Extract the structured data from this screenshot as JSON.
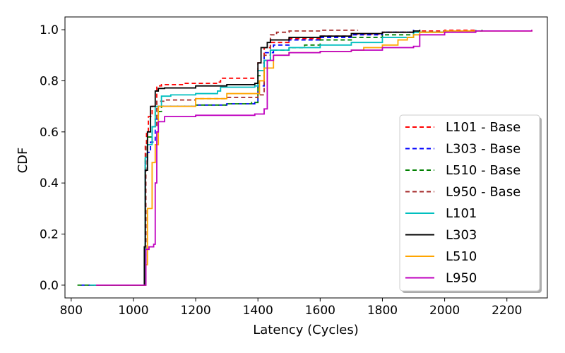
{
  "chart_data": {
    "type": "line",
    "title": "",
    "xlabel": "Latency (Cycles)",
    "ylabel": "CDF",
    "xlim": [
      780,
      2330
    ],
    "ylim": [
      -0.05,
      1.05
    ],
    "xticks": [
      800,
      1000,
      1200,
      1400,
      1600,
      1800,
      2000,
      2200
    ],
    "yticks": [
      0.0,
      0.2,
      0.4,
      0.6,
      0.8,
      1.0
    ],
    "xtick_labels": [
      "800",
      "1000",
      "1200",
      "1400",
      "1600",
      "1800",
      "2000",
      "2200"
    ],
    "ytick_labels": [
      "0.0",
      "0.2",
      "0.4",
      "0.6",
      "0.8",
      "1.0"
    ],
    "grid": false,
    "legend_position": "lower-right",
    "series": [
      {
        "name": "L101 - Base",
        "color": "#ff0000",
        "style": "dashed",
        "x": [
          860,
          1035,
          1038,
          1042,
          1048,
          1060,
          1075,
          1090,
          1160,
          1270,
          1280,
          1390,
          1400,
          1420,
          1440,
          1500,
          1600,
          1700,
          1800,
          1900,
          2000,
          2100
        ],
        "y": [
          0.0,
          0.0,
          0.55,
          0.6,
          0.66,
          0.7,
          0.78,
          0.785,
          0.79,
          0.795,
          0.81,
          0.81,
          0.87,
          0.93,
          0.95,
          0.965,
          0.975,
          0.983,
          0.99,
          0.995,
          0.998,
          1.0
        ]
      },
      {
        "name": "L303 - Base",
        "color": "#0000ff",
        "style": "dashed",
        "x": [
          830,
          1035,
          1038,
          1045,
          1055,
          1070,
          1080,
          1100,
          1200,
          1300,
          1390,
          1400,
          1420,
          1450,
          1500,
          1600,
          1700,
          1800,
          1900
        ],
        "y": [
          0.0,
          0.0,
          0.48,
          0.52,
          0.56,
          0.65,
          0.7,
          0.7,
          0.705,
          0.71,
          0.715,
          0.78,
          0.91,
          0.94,
          0.96,
          0.97,
          0.98,
          0.99,
          1.0
        ]
      },
      {
        "name": "L510 - Base",
        "color": "#008000",
        "style": "dashed",
        "x": [
          820,
          1035,
          1038,
          1045,
          1060,
          1070,
          1090,
          1200,
          1300,
          1380,
          1400,
          1420,
          1440,
          1500,
          1550,
          1600,
          1700,
          1800,
          1900,
          2000,
          2120
        ],
        "y": [
          0.0,
          0.0,
          0.5,
          0.58,
          0.62,
          0.68,
          0.7,
          0.705,
          0.71,
          0.715,
          0.82,
          0.88,
          0.92,
          0.93,
          0.94,
          0.96,
          0.97,
          0.98,
          0.99,
          0.995,
          1.0
        ]
      },
      {
        "name": "L950 - Base",
        "color": "#a52a2a",
        "style": "dashed",
        "x": [
          860,
          1035,
          1040,
          1060,
          1075,
          1100,
          1200,
          1300,
          1400,
          1420,
          1440,
          1460,
          1500,
          1600,
          1720
        ],
        "y": [
          0.0,
          0.0,
          0.55,
          0.62,
          0.72,
          0.725,
          0.73,
          0.735,
          0.745,
          0.9,
          0.98,
          0.99,
          0.995,
          0.998,
          1.0
        ]
      },
      {
        "name": "L101",
        "color": "#00bfbf",
        "style": "solid",
        "x": [
          860,
          1035,
          1038,
          1045,
          1060,
          1070,
          1090,
          1120,
          1200,
          1270,
          1280,
          1390,
          1400,
          1420,
          1440,
          1500,
          1600,
          1700,
          1800,
          1900,
          2000,
          2100
        ],
        "y": [
          0.0,
          0.0,
          0.5,
          0.55,
          0.62,
          0.7,
          0.74,
          0.745,
          0.75,
          0.76,
          0.775,
          0.78,
          0.84,
          0.88,
          0.92,
          0.93,
          0.94,
          0.95,
          0.97,
          0.99,
          0.995,
          1.0
        ]
      },
      {
        "name": "L303",
        "color": "#000000",
        "style": "solid",
        "x": [
          880,
          1030,
          1035,
          1038,
          1045,
          1055,
          1070,
          1080,
          1100,
          1200,
          1300,
          1390,
          1400,
          1410,
          1430,
          1440,
          1500,
          1600,
          1700,
          1800,
          1900,
          1920
        ],
        "y": [
          0.0,
          0.0,
          0.15,
          0.45,
          0.6,
          0.7,
          0.76,
          0.77,
          0.772,
          0.78,
          0.785,
          0.79,
          0.87,
          0.93,
          0.95,
          0.96,
          0.97,
          0.975,
          0.985,
          0.99,
          0.995,
          1.0
        ]
      },
      {
        "name": "L510",
        "color": "#ffa500",
        "style": "solid",
        "x": [
          880,
          1035,
          1040,
          1045,
          1060,
          1070,
          1080,
          1100,
          1200,
          1300,
          1390,
          1405,
          1420,
          1450,
          1500,
          1600,
          1700,
          1740,
          1800,
          1850,
          1880,
          1900,
          1920,
          2000,
          2280
        ],
        "y": [
          0.0,
          0.0,
          0.08,
          0.3,
          0.48,
          0.55,
          0.7,
          0.7,
          0.73,
          0.75,
          0.75,
          0.8,
          0.85,
          0.9,
          0.91,
          0.915,
          0.92,
          0.93,
          0.94,
          0.96,
          0.97,
          0.98,
          0.99,
          0.995,
          1.0
        ]
      },
      {
        "name": "L950",
        "color": "#bf00bf",
        "style": "solid",
        "x": [
          880,
          1030,
          1040,
          1050,
          1065,
          1070,
          1075,
          1080,
          1100,
          1200,
          1300,
          1390,
          1420,
          1430,
          1450,
          1500,
          1600,
          1700,
          1800,
          1900,
          1920,
          2000,
          2100,
          2280
        ],
        "y": [
          0.0,
          0.0,
          0.14,
          0.15,
          0.16,
          0.4,
          0.6,
          0.64,
          0.66,
          0.665,
          0.665,
          0.67,
          0.69,
          0.88,
          0.9,
          0.91,
          0.915,
          0.92,
          0.93,
          0.935,
          0.98,
          0.99,
          0.995,
          1.0
        ]
      }
    ]
  }
}
